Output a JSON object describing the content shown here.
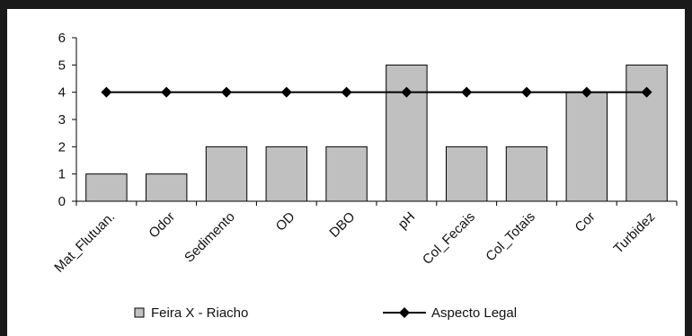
{
  "chart_data": {
    "type": "bar",
    "categories": [
      "Mat_Flutuan.",
      "Odor",
      "Sedimento",
      "OD",
      "DBO",
      "pH",
      "Col_Fecais",
      "Col_Totais",
      "Cor",
      "Turbidez"
    ],
    "series": [
      {
        "name": "Feira X - Riacho",
        "type": "bar",
        "values": [
          1,
          1,
          2,
          2,
          2,
          5,
          2,
          2,
          4,
          5
        ],
        "color": "#c0c0c0"
      },
      {
        "name": "Aspecto Legal",
        "type": "line",
        "values": [
          4,
          4,
          4,
          4,
          4,
          4,
          4,
          4,
          4,
          4
        ],
        "color": "#000000",
        "marker": "diamond"
      }
    ],
    "ylim": [
      0,
      6
    ],
    "yticks": [
      0,
      1,
      2,
      3,
      4,
      5,
      6
    ],
    "grid": false,
    "legend_position": "bottom"
  }
}
